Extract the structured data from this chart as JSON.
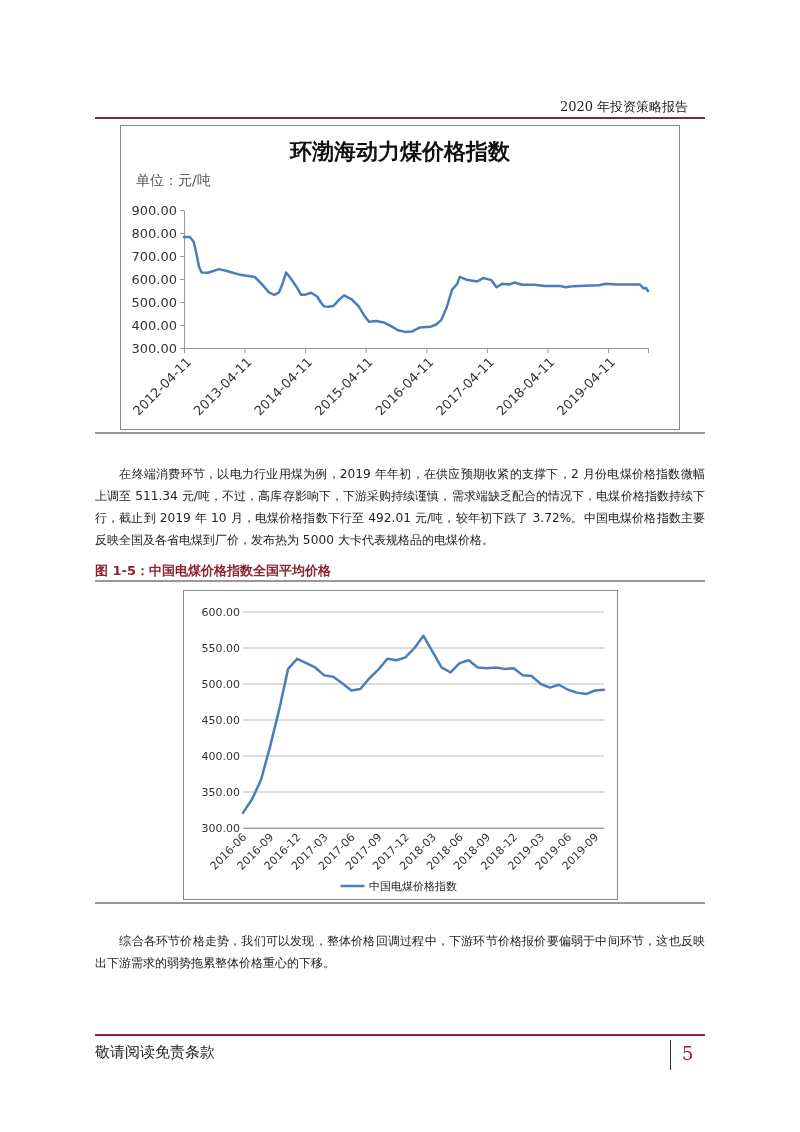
{
  "chart_data": [
    {
      "type": "line",
      "title": "环渤海动力煤价格指数",
      "ylabel": "单位：元/吨",
      "x": [
        "2012-04-11",
        "2012-05-17",
        "2012-06-08",
        "2012-06-26",
        "2012-07-11",
        "2012-07-26",
        "2012-09-03",
        "2012-11-08",
        "2012-12-20",
        "2013-03-16",
        "2013-06-11",
        "2013-07-23",
        "2013-09-05",
        "2013-10-08",
        "2013-11-05",
        "2013-11-26",
        "2013-12-17",
        "2014-01-14",
        "2014-02-25",
        "2014-03-17",
        "2014-04-08",
        "2014-05-17",
        "2014-06-23",
        "2014-07-14",
        "2014-08-04",
        "2014-08-28",
        "2014-09-29",
        "2014-11-01",
        "2014-12-02",
        "2015-01-17",
        "2015-02-28",
        "2015-03-31",
        "2015-05-01",
        "2015-06-14",
        "2015-07-29",
        "2015-09-11",
        "2015-10-23",
        "2015-12-05",
        "2016-01-17",
        "2016-03-01",
        "2016-05-04",
        "2016-06-07",
        "2016-07-08",
        "2016-08-11",
        "2016-09-13",
        "2016-10-14",
        "2016-10-29",
        "2016-12-08",
        "2017-02-11",
        "2017-03-20",
        "2017-05-08",
        "2017-06-08",
        "2017-07-11",
        "2017-08-23",
        "2017-09-26",
        "2017-11-08",
        "2018-01-23",
        "2018-03-26",
        "2018-06-23",
        "2018-07-29",
        "2018-09-16",
        "2018-11-20",
        "2019-02-16",
        "2019-03-29",
        "2019-06-01",
        "2019-10-20",
        "2019-11-11",
        "2019-11-26",
        "2019-12-08"
      ],
      "series": [
        {
          "color": "#4a7ebb",
          "values": [
            783,
            783,
            762,
            707,
            652,
            628,
            627,
            643,
            636,
            618,
            609,
            579,
            542,
            531,
            542,
            579,
            628,
            603,
            558,
            532,
            531,
            540,
            524,
            499,
            481,
            479,
            483,
            509,
            529,
            511,
            481,
            444,
            414,
            417,
            411,
            395,
            377,
            370,
            372,
            389,
            392,
            401,
            420,
            475,
            554,
            579,
            609,
            597,
            589,
            604,
            595,
            564,
            579,
            576,
            585,
            575,
            575,
            570,
            570,
            564,
            569,
            571,
            573,
            579,
            576,
            576,
            559,
            561,
            548
          ]
        }
      ],
      "xlim": [
        "2012-04-11",
        "2019-12-08"
      ],
      "xticks": [
        "2012-04-11",
        "2013-04-11",
        "2014-04-11",
        "2015-04-11",
        "2016-04-11",
        "2017-04-11",
        "2018-04-11",
        "2019-04-11"
      ],
      "ylim": [
        300,
        900
      ],
      "yticks": [
        {
          "value": 300,
          "label": "300.00"
        },
        {
          "value": 400,
          "label": "400.00"
        },
        {
          "value": 500,
          "label": "500.00"
        },
        {
          "value": 600,
          "label": "600.00"
        },
        {
          "value": 700,
          "label": "700.00"
        },
        {
          "value": 800,
          "label": "800.00"
        },
        {
          "value": 900,
          "label": "900.00"
        }
      ],
      "grid": false,
      "legend": false,
      "annotations": [
        "2020 年投资策略报告",
        "在终端消费环节，以电力行业用煤为例，2019 年年初，在供应预期收紧的支撑下，2 月份电煤价格指数微幅上调至 511.34 元/吨，不过，高库存影响下，下游采购持续谨慎，需求端缺乏配合的情况下，电煤价格指数持续下行，截止到 2019 年 10 月，电煤价格指数下行至 492.01 元/吨，较年初下跌了 3.72%。中国电煤价格指数主要反映全国及各省电煤到厂价，发布热为 5000 大卡代表规格品的电煤价格。"
      ]
    },
    {
      "type": "line",
      "title": "图 1-5：中国电煤价格指数全国平均价格",
      "categories": [
        "2016-06",
        null,
        null,
        "2016-09",
        null,
        null,
        "2016-12",
        null,
        null,
        "2017-03",
        null,
        null,
        "2017-06",
        null,
        null,
        "2017-09",
        null,
        null,
        "2017-12",
        null,
        null,
        "2018-03",
        null,
        null,
        "2018-06",
        null,
        null,
        "2018-09",
        null,
        null,
        "2018-12",
        null,
        null,
        "2019-03",
        null,
        null,
        "2019-06",
        null,
        null,
        "2019-09",
        null
      ],
      "series": [
        {
          "name": "中国电煤价格指数",
          "color": "#4a7ebb",
          "values": [
            321,
            340,
            367,
            413,
            464,
            521,
            535,
            529,
            523,
            512,
            510,
            501,
            491,
            493,
            508,
            520,
            535,
            533,
            537,
            550,
            567,
            545,
            523,
            516,
            529,
            533,
            523,
            522,
            523,
            521,
            522,
            512,
            511,
            500,
            495,
            499,
            492,
            488,
            486,
            491,
            492
          ]
        }
      ],
      "ylim": [
        300,
        600
      ],
      "yticks": [
        {
          "value": 300,
          "label": "300.00"
        },
        {
          "value": 350,
          "label": "350.00"
        },
        {
          "value": 400,
          "label": "400.00"
        },
        {
          "value": 450,
          "label": "450.00"
        },
        {
          "value": 500,
          "label": "500.00"
        },
        {
          "value": 550,
          "label": "550.00"
        },
        {
          "value": 600,
          "label": "600.00"
        }
      ],
      "grid": "y",
      "legend": "bottom",
      "annotations": [
        "综合各环节价格走势，我们可以发现，整体价格回调过程中，下游环节价格报价要偏弱于中间环节，这也反映出下游需求的弱势拖累整体价格重心的下移。",
        "敬请阅读免责条款",
        "5"
      ]
    }
  ]
}
